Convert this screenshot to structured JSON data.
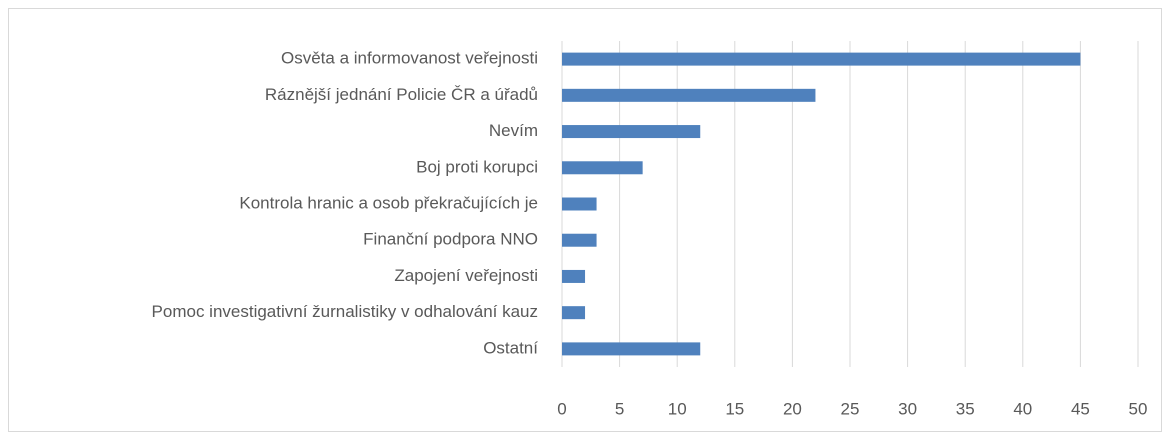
{
  "chart_data": {
    "type": "bar",
    "orientation": "horizontal",
    "categories": [
      "Osvěta a informovanost veřejnosti",
      "Ráznější jednání Policie ČR a úřadů",
      "Nevím",
      "Boj proti korupci",
      "Kontrola hranic a osob překračujících je",
      "Finanční podpora NNO",
      "Zapojení veřejnosti",
      "Pomoc investigativní žurnalistiky v odhalování kauz",
      "Ostatní"
    ],
    "values": [
      45,
      22,
      12,
      7,
      3,
      3,
      2,
      2,
      12
    ],
    "color": "#4f81bd",
    "xlim": [
      0,
      50
    ],
    "xticks": [
      0,
      5,
      10,
      15,
      20,
      25,
      30,
      35,
      40,
      45,
      50
    ],
    "grid": true
  }
}
